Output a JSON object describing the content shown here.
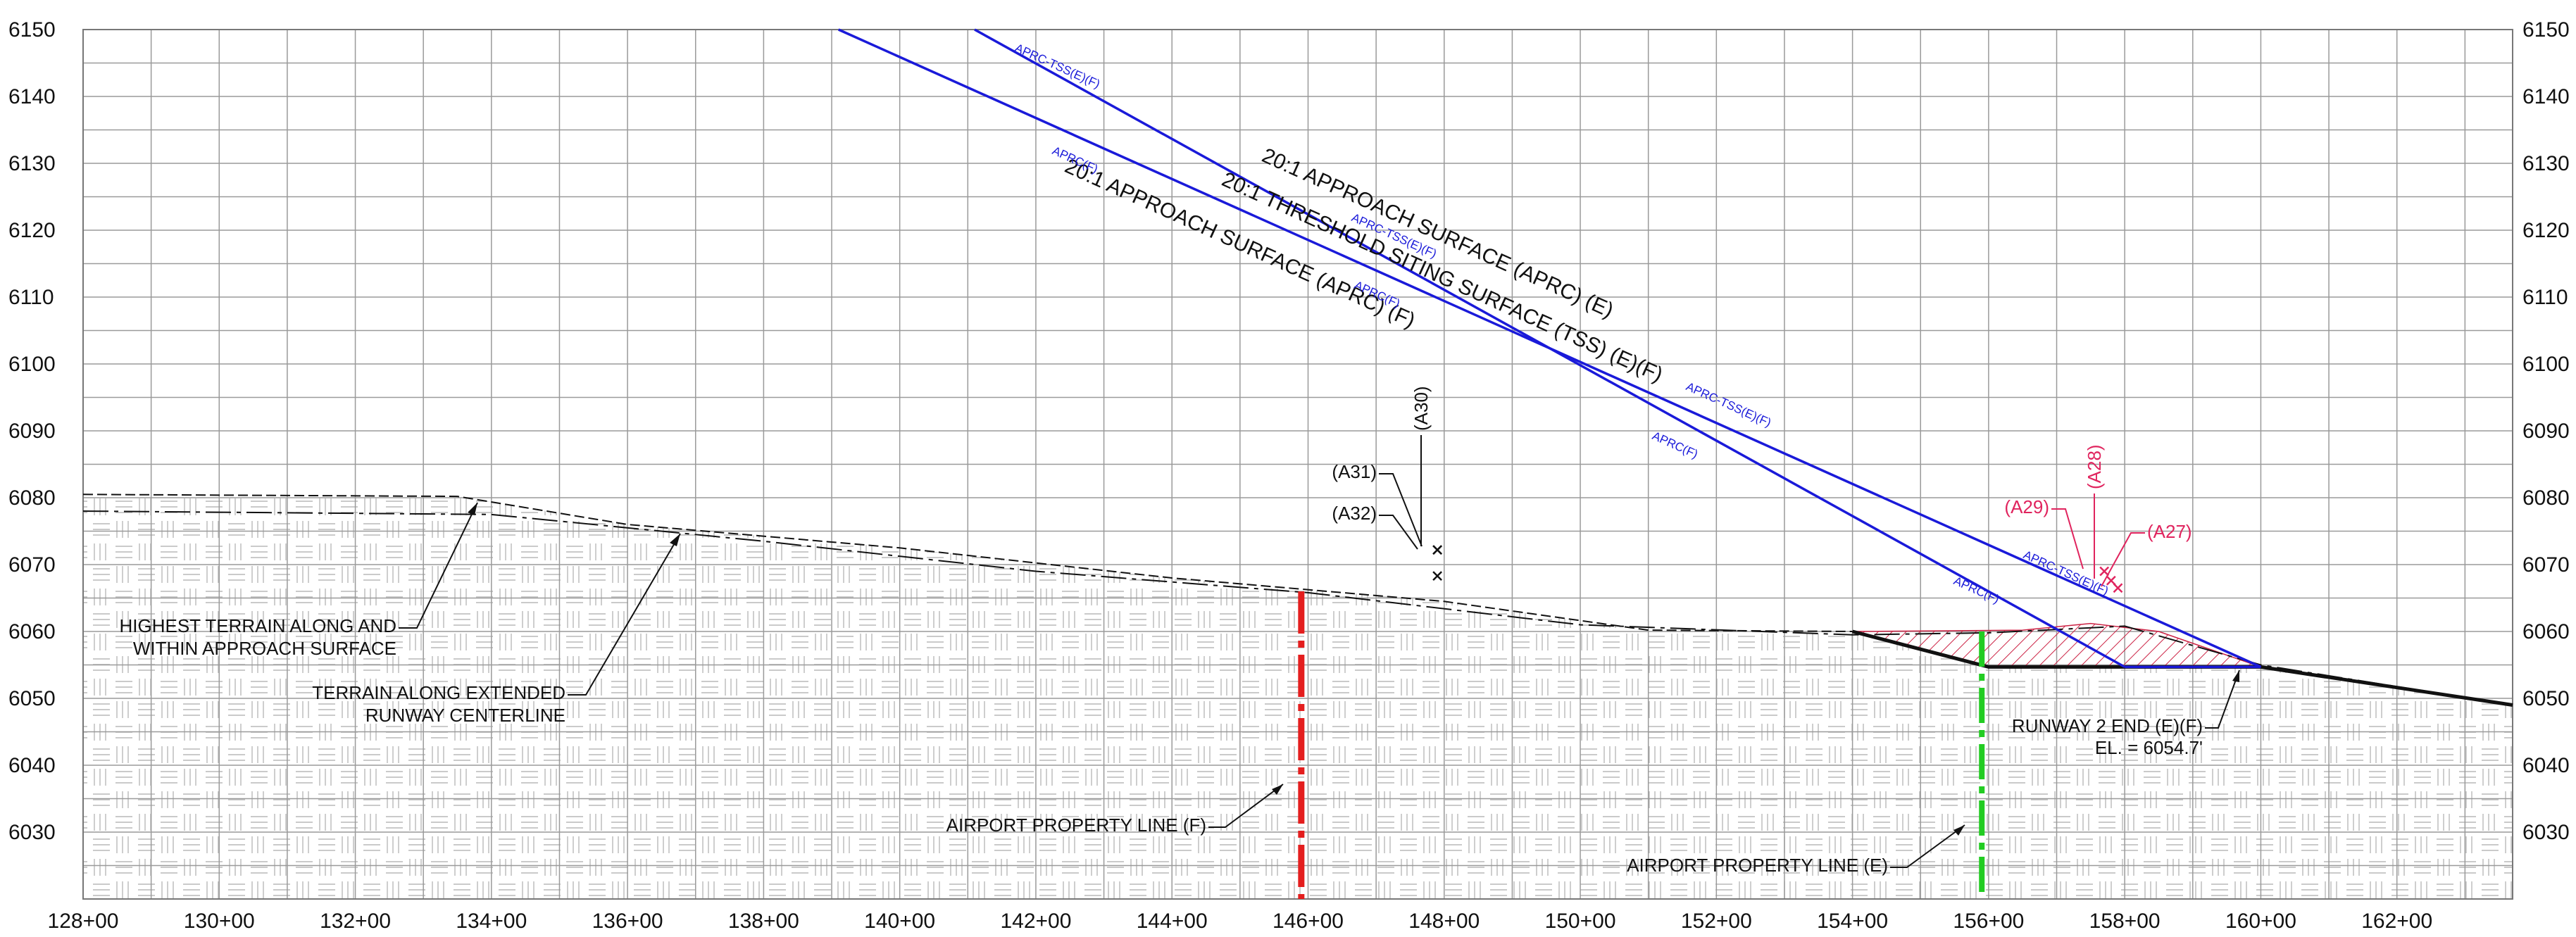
{
  "colors": {
    "grid": "#9a9a9a",
    "approach": "#1a1ad9",
    "property_f": "#e41e1e",
    "property_e": "#22cc22",
    "callout_red": "#e0245e",
    "hatch": "#cc2244",
    "terrain": "#111111"
  },
  "x_axis": {
    "ticks": [
      "128+00",
      "130+00",
      "132+00",
      "134+00",
      "136+00",
      "138+00",
      "140+00",
      "142+00",
      "144+00",
      "146+00",
      "148+00",
      "150+00",
      "152+00",
      "154+00",
      "156+00",
      "158+00",
      "160+00",
      "162+00"
    ]
  },
  "y_axis": {
    "ticks": [
      "6150",
      "6140",
      "6130",
      "6120",
      "6110",
      "6100",
      "6090",
      "6080",
      "6070",
      "6060",
      "6050",
      "6040",
      "6030"
    ]
  },
  "surfaces": {
    "aprc_e": {
      "label": "20:1 APPROACH SURFACE  (APRC) (E)",
      "tag": "APRC-TSS(E)(F)",
      "start": [
        139.1,
        6150
      ],
      "end": [
        160.0,
        6054.7
      ]
    },
    "tss": {
      "label": "20:1 THRESHOLD SITING SURFACE  (TSS) (E)(F)",
      "tag": "APRC-TSS(E)(F)"
    },
    "aprc_f": {
      "label": "20:1 APPROACH SURFACE  (APRC) (F)",
      "tag": "APRC(F)",
      "start": [
        141.1,
        6150
      ],
      "end": [
        158.0,
        6054.7
      ]
    }
  },
  "terrain": {
    "centerline": [
      [
        128,
        6078
      ],
      [
        134,
        6077.5
      ],
      [
        138,
        6073.5
      ],
      [
        142,
        6069
      ],
      [
        146,
        6065.8
      ],
      [
        150,
        6061
      ],
      [
        154,
        6059.5
      ],
      [
        156,
        6059.8
      ],
      [
        158,
        6060.8
      ],
      [
        160,
        6055
      ],
      [
        163.7,
        6049
      ]
    ],
    "highest": [
      [
        128,
        6080.5
      ],
      [
        133.5,
        6080.2
      ],
      [
        136,
        6076
      ],
      [
        140,
        6072.5
      ],
      [
        144,
        6068
      ],
      [
        148,
        6064.5
      ],
      [
        151,
        6060.2
      ],
      [
        154,
        6060
      ]
    ],
    "runway_profile": [
      [
        154,
        6060
      ],
      [
        156,
        6054.7
      ],
      [
        160,
        6054.7
      ],
      [
        163.7,
        6049
      ]
    ],
    "grading_hatch": [
      [
        154,
        6060
      ],
      [
        156,
        6054.7
      ],
      [
        160,
        6054.7
      ],
      [
        158.5,
        6060
      ],
      [
        157.5,
        6061.2
      ],
      [
        156.5,
        6060.2
      ]
    ]
  },
  "obstacles": [
    {
      "id": "(A31)",
      "station": 147.9,
      "elev": 6072.2
    },
    {
      "id": "(A32)",
      "station": 147.9,
      "elev": 6068.3
    },
    {
      "id": "(A30)",
      "station": 147.9,
      "elev": 6072.2
    },
    {
      "id": "(A29)",
      "station": 157.7,
      "elev": 6069
    },
    {
      "id": "(A28)",
      "station": 157.8,
      "elev": 6067.6
    },
    {
      "id": "(A27)",
      "station": 157.9,
      "elev": 6066.5
    }
  ],
  "property_lines": {
    "f": {
      "label": "AIRPORT PROPERTY LINE (F)",
      "station": 145.9
    },
    "e": {
      "label": "AIRPORT PROPERTY LINE (E)",
      "station": 155.9
    }
  },
  "annotations": {
    "highest_terrain": [
      "HIGHEST TERRAIN ALONG AND",
      "WITHIN APPROACH SURFACE"
    ],
    "terrain_centerline": [
      "TERRAIN ALONG EXTENDED",
      "RUNWAY CENTERLINE"
    ],
    "runway_end": [
      "RUNWAY 2 END (E)(F)",
      "EL. = 6054.7'"
    ]
  }
}
